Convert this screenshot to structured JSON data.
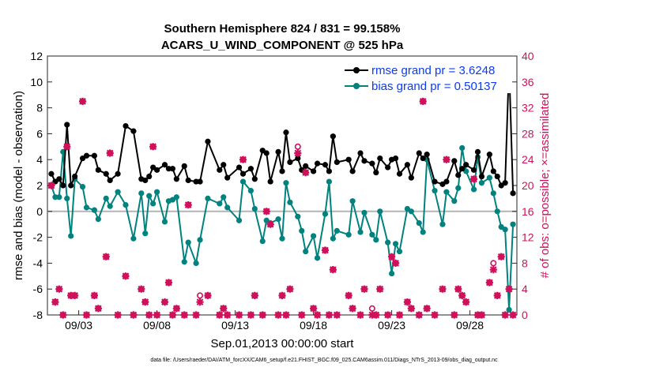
{
  "chart_data": {
    "type": "line",
    "title": "Southern Hemisphere 824 / 831 = 99.158%",
    "subtitle": "ACARS_U_WIND_COMPONENT @ 525 hPa",
    "xlabel": "Sep.01,2013 00:00:00 start",
    "ylabel": "rmse and bias (model - observation)",
    "y2label": "# of obs: o=possible; ×=assimilated",
    "xlim": [
      1.0,
      31.0
    ],
    "ylim": [
      -8,
      12
    ],
    "y2lim": [
      0,
      40
    ],
    "x_tick_values": [
      3,
      8,
      13,
      18,
      23,
      28
    ],
    "x_tick_labels": [
      "09/03",
      "09/08",
      "09/13",
      "09/18",
      "09/23",
      "09/28"
    ],
    "y_ticks": [
      -8,
      -6,
      -4,
      -2,
      0,
      2,
      4,
      6,
      8,
      10,
      12
    ],
    "y2_ticks": [
      0,
      4,
      8,
      12,
      16,
      20,
      24,
      28,
      32,
      36,
      40
    ],
    "zero_line": 0,
    "grid": false,
    "legend_position": "top-right",
    "legend": [
      "rmse grand pr = 3.6248",
      "bias grand pr = 0.50137"
    ],
    "footnote": "data file: /Users/raeder/DAI/ATM_forcXX/CAM6_setup/f.e21.FHIST_BGC.f09_025.CAM6assim.011/Diags_NTrS_2013-09/obs_diag_output.nc",
    "colors": {
      "rmse": "#000000",
      "bias": "#00827f",
      "obs": "#d0105a",
      "zero_line": "#b4b4b4"
    },
    "series": [
      {
        "name": "rmse",
        "x": [
          1.25,
          1.5,
          1.75,
          2.0,
          2.25,
          2.5,
          2.75,
          3.25,
          3.5,
          4.0,
          4.25,
          4.75,
          5.0,
          5.5,
          6.0,
          6.5,
          7.0,
          7.25,
          7.5,
          7.75,
          8.0,
          8.5,
          8.75,
          9.0,
          9.25,
          9.75,
          10.0,
          10.5,
          10.75,
          11.25,
          12.0,
          12.25,
          12.5,
          13.25,
          13.5,
          14.0,
          14.25,
          14.75,
          15.0,
          15.25,
          15.75,
          16.0,
          16.25,
          16.5,
          17.0,
          17.25,
          17.5,
          18.0,
          18.25,
          18.75,
          19.0,
          19.25,
          19.5,
          20.25,
          20.5,
          21.0,
          21.25,
          21.75,
          22.0,
          22.25,
          22.75,
          23.0,
          23.25,
          23.5,
          24.0,
          24.25,
          24.75,
          25.0,
          25.25,
          25.75,
          26.25,
          26.5,
          27.0,
          27.25,
          27.5,
          27.75,
          28.25,
          28.5,
          28.75,
          29.25,
          29.5,
          29.75,
          30.0,
          30.25,
          30.5,
          30.75
        ],
        "y": [
          2.9,
          2.3,
          2.5,
          2.0,
          6.7,
          2.0,
          2.7,
          4.1,
          4.3,
          4.3,
          3.2,
          2.9,
          2.4,
          2.9,
          6.6,
          6.2,
          2.5,
          2.4,
          2.7,
          3.4,
          3.2,
          3.6,
          3.3,
          3.3,
          2.5,
          3.5,
          2.4,
          2.3,
          2.3,
          5.4,
          3.2,
          3.6,
          2.6,
          3.4,
          2.9,
          3.3,
          2.5,
          4.7,
          4.5,
          2.3,
          4.6,
          3.1,
          6.1,
          3.8,
          4.1,
          3.2,
          3.5,
          3.1,
          3.7,
          3.6,
          3.1,
          5.8,
          3.8,
          4.0,
          3.1,
          4.5,
          3.9,
          3.7,
          3.0,
          4.1,
          3.4,
          4.0,
          4.1,
          2.9,
          3.6,
          2.6,
          4.5,
          4.1,
          4.4,
          2.3,
          2.1,
          2.3,
          3.9,
          2.8,
          3.3,
          3.6,
          3.2,
          4.6,
          2.7,
          4.4,
          3.1,
          2.7,
          2.0,
          2.2,
          11.3,
          1.4
        ]
      },
      {
        "name": "bias",
        "x": [
          1.25,
          1.5,
          1.75,
          2.0,
          2.25,
          2.5,
          2.75,
          3.25,
          3.5,
          4.0,
          4.25,
          4.75,
          5.0,
          5.5,
          6.0,
          6.5,
          7.0,
          7.25,
          7.5,
          7.75,
          8.0,
          8.5,
          8.75,
          9.0,
          9.25,
          9.75,
          10.0,
          10.5,
          10.75,
          11.25,
          12.0,
          12.25,
          12.5,
          13.25,
          13.5,
          14.0,
          14.25,
          14.75,
          15.0,
          15.25,
          15.75,
          16.0,
          16.25,
          16.5,
          17.0,
          17.25,
          17.5,
          18.0,
          18.25,
          18.75,
          19.0,
          19.25,
          19.5,
          20.25,
          20.5,
          21.0,
          21.25,
          21.75,
          22.0,
          22.25,
          22.75,
          23.0,
          23.25,
          23.5,
          24.0,
          24.25,
          24.75,
          25.0,
          25.25,
          25.75,
          26.25,
          26.5,
          27.0,
          27.25,
          27.5,
          27.75,
          28.25,
          28.5,
          28.75,
          29.25,
          29.5,
          29.75,
          30.0,
          30.25,
          30.5,
          30.75
        ],
        "y": [
          2.0,
          1.1,
          1.1,
          4.6,
          1.0,
          -1.9,
          2.5,
          1.9,
          0.3,
          0.1,
          -0.6,
          1.0,
          0.4,
          1.5,
          0.5,
          -2.1,
          1.4,
          -1.7,
          1.2,
          0.6,
          1.5,
          -0.8,
          0.8,
          0.9,
          1.1,
          -3.9,
          -2.4,
          -4.0,
          -2.2,
          1.0,
          0.6,
          1.1,
          0.3,
          -0.7,
          2.3,
          1.6,
          0.2,
          -2.3,
          -0.7,
          -0.9,
          -0.6,
          -2.1,
          2.2,
          0.7,
          -0.4,
          -1.5,
          -3.1,
          -1.9,
          -3.6,
          -0.2,
          2.3,
          -2.1,
          -1.5,
          -1.8,
          0.8,
          -1.6,
          -0.1,
          -1.8,
          -2.2,
          0.0,
          -2.4,
          -4.8,
          -2.5,
          -3.1,
          0.2,
          0.0,
          -0.9,
          -1.6,
          4.0,
          1.6,
          -1.0,
          1.5,
          0.8,
          1.8,
          4.9,
          3.1,
          1.7,
          4.2,
          2.2,
          2.6,
          1.4,
          0.0,
          -1.2,
          -1.4,
          -7.6,
          -1.0
        ]
      },
      {
        "name": "possible",
        "marker": "o",
        "axis": "right",
        "x": [
          1.25,
          1.5,
          1.75,
          2.0,
          2.25,
          2.5,
          2.75,
          3.25,
          3.5,
          4.0,
          4.25,
          4.75,
          5.0,
          5.5,
          6.0,
          6.5,
          7.0,
          7.25,
          7.5,
          7.75,
          8.0,
          8.5,
          8.75,
          9.0,
          9.25,
          9.75,
          10.0,
          10.5,
          10.75,
          11.25,
          12.0,
          12.25,
          12.5,
          13.25,
          13.5,
          14.0,
          14.25,
          14.75,
          15.0,
          15.25,
          15.75,
          16.0,
          16.25,
          16.5,
          17.0,
          17.25,
          17.5,
          18.0,
          18.25,
          18.75,
          19.0,
          19.25,
          19.5,
          20.25,
          20.5,
          21.0,
          21.25,
          21.75,
          22.0,
          22.25,
          22.75,
          23.0,
          23.25,
          23.5,
          24.0,
          24.25,
          24.75,
          25.0,
          25.25,
          25.75,
          26.25,
          26.5,
          27.0,
          27.25,
          27.5,
          27.75,
          28.25,
          28.5,
          28.75,
          29.25,
          29.5,
          29.75,
          30.0,
          30.25,
          30.5,
          30.75
        ],
        "y": [
          20,
          2,
          4,
          0,
          26,
          3,
          3,
          33,
          0,
          3,
          1,
          9,
          25,
          0,
          6,
          0,
          4,
          2,
          0,
          26,
          0,
          2,
          5,
          0,
          1,
          0,
          17,
          0,
          3,
          3,
          0,
          1,
          0,
          0,
          24,
          0,
          3,
          0,
          16,
          14,
          0,
          3,
          0,
          4,
          26,
          0,
          22,
          1,
          0,
          10,
          0,
          7,
          0,
          3,
          1,
          0,
          4,
          1,
          0,
          4,
          0,
          9,
          8,
          0,
          2,
          1,
          0,
          33,
          1,
          0,
          4,
          24,
          0,
          4,
          3,
          2,
          21,
          0,
          0,
          5,
          8,
          3,
          9,
          0,
          4,
          0
        ]
      },
      {
        "name": "assimilated",
        "marker": "x",
        "axis": "right",
        "x": [
          1.25,
          1.5,
          1.75,
          2.0,
          2.25,
          2.5,
          2.75,
          3.25,
          3.5,
          4.0,
          4.25,
          4.75,
          5.0,
          5.5,
          6.0,
          6.5,
          7.0,
          7.25,
          7.5,
          7.75,
          8.0,
          8.5,
          8.75,
          9.0,
          9.25,
          9.75,
          10.0,
          10.5,
          10.75,
          11.25,
          12.0,
          12.25,
          12.5,
          13.25,
          13.5,
          14.0,
          14.25,
          14.75,
          15.0,
          15.25,
          15.75,
          16.0,
          16.25,
          16.5,
          17.0,
          17.25,
          17.5,
          18.0,
          18.25,
          18.75,
          19.0,
          19.25,
          19.5,
          20.25,
          20.5,
          21.0,
          21.25,
          21.75,
          22.0,
          22.25,
          22.75,
          23.0,
          23.25,
          23.5,
          24.0,
          24.25,
          24.75,
          25.0,
          25.25,
          25.75,
          26.25,
          26.5,
          27.0,
          27.25,
          27.5,
          27.75,
          28.25,
          28.5,
          28.75,
          29.25,
          29.5,
          29.75,
          30.0,
          30.25,
          30.5,
          30.75
        ],
        "y": [
          20,
          2,
          4,
          0,
          26,
          3,
          3,
          33,
          0,
          3,
          1,
          9,
          25,
          0,
          6,
          0,
          4,
          2,
          0,
          26,
          0,
          2,
          5,
          0,
          1,
          0,
          17,
          0,
          2,
          3,
          0,
          1,
          0,
          0,
          24,
          0,
          3,
          0,
          16,
          14,
          0,
          3,
          0,
          4,
          25,
          0,
          22,
          1,
          0,
          10,
          0,
          7,
          0,
          3,
          1,
          0,
          4,
          0,
          0,
          4,
          0,
          9,
          8,
          0,
          2,
          1,
          0,
          33,
          1,
          0,
          4,
          24,
          0,
          4,
          3,
          2,
          21,
          0,
          0,
          5,
          7,
          3,
          9,
          0,
          4,
          0
        ]
      }
    ]
  }
}
